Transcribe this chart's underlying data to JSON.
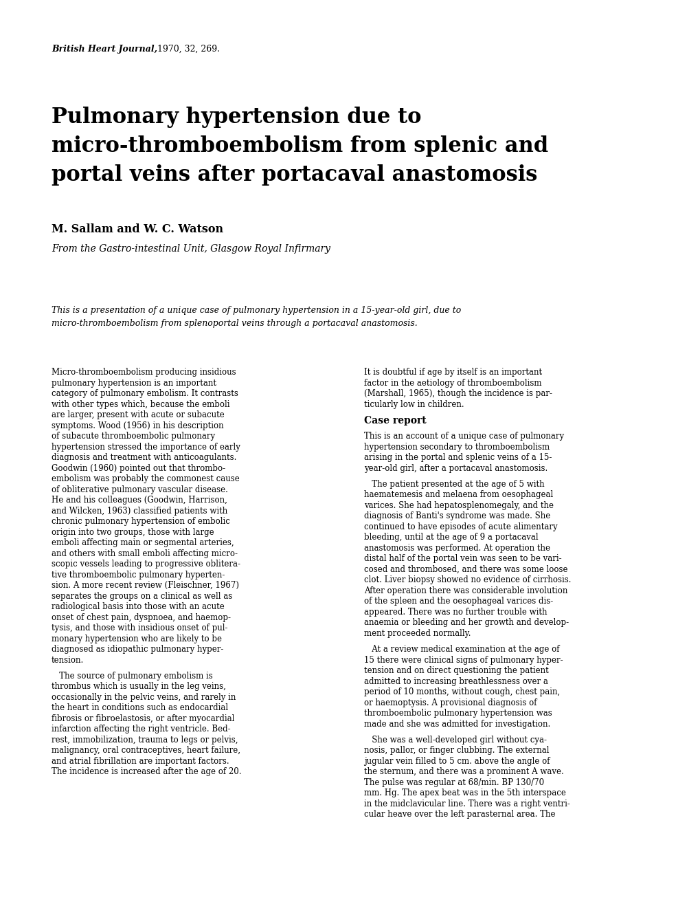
{
  "background_color": "#ffffff",
  "page_width": 10.2,
  "page_height": 13.31,
  "journal_ref_italic": "British Heart Journal,",
  "journal_ref_normal": " 1970, 32, 269.",
  "title_line1": "Pulmonary hypertension due to",
  "title_line2": "micro-thromboembolism from splenic and",
  "title_line3": "portal veins after portacaval anastomosis",
  "authors": "M. Sallam and W. C. Watson",
  "affiliation": "From the Gastro-intestinal Unit, Glasgow Royal Infirmary",
  "abstract_line1": "This is a presentation of a unique case of pulmonary hypertension in a 15-year-old girl, due to",
  "abstract_line2": "micro-thromboembolism from splenoportal veins through a portacaval anastomosis.",
  "col1_lines": [
    "Micro-thromboembolism producing insidious",
    "pulmonary hypertension is an important",
    "category of pulmonary embolism. It contrasts",
    "with other types which, because the emboli",
    "are larger, present with acute or subacute",
    "symptoms. Wood (1956) in his description",
    "of subacute thromboembolic pulmonary",
    "hypertension stressed the importance of early",
    "diagnosis and treatment with anticoagulants.",
    "Goodwin (1960) pointed out that thrombo-",
    "embolism was probably the commonest cause",
    "of obliterative pulmonary vascular disease.",
    "He and his colleagues (Goodwin, Harrison,",
    "and Wilcken, 1963) classified patients with",
    "chronic pulmonary hypertension of embolic",
    "origin into two groups, those with large",
    "emboli affecting main or segmental arteries,",
    "and others with small emboli affecting micro-",
    "scopic vessels leading to progressive oblitera-",
    "tive thromboembolic pulmonary hyperten-",
    "sion. A more recent review (Fleischner, 1967)",
    "separates the groups on a clinical as well as",
    "radiological basis into those with an acute",
    "onset of chest pain, dyspnoea, and haemop-",
    "tysis, and those with insidious onset of pul-",
    "monary hypertension who are likely to be",
    "diagnosed as idiopathic pulmonary hyper-",
    "tension.",
    "",
    "   The source of pulmonary embolism is",
    "thrombus which is usually in the leg veins,",
    "occasionally in the pelvic veins, and rarely in",
    "the heart in conditions such as endocardial",
    "fibrosis or fibroelastosis, or after myocardial",
    "infarction affecting the right ventricle. Bed-",
    "rest, immobilization, trauma to legs or pelvis,",
    "malignancy, oral contraceptives, heart failure,",
    "and atrial fibrillation are important factors.",
    "The incidence is increased after the age of 20."
  ],
  "col2_lines": [
    "It is doubtful if age by itself is an important",
    "factor in the aetiology of thromboembolism",
    "(Marshall, 1965), though the incidence is par-",
    "ticularly low in children.",
    "",
    "HEADER:Case report",
    "",
    "This is an account of a unique case of pulmonary",
    "hypertension secondary to thromboembolism",
    "arising in the portal and splenic veins of a 15-",
    "year-old girl, after a portacaval anastomosis.",
    "",
    "   The patient presented at the age of 5 with",
    "haematemesis and melaena from oesophageal",
    "varices. She had hepatosplenomegaly, and the",
    "diagnosis of Banti's syndrome was made. She",
    "continued to have episodes of acute alimentary",
    "bleeding, until at the age of 9 a portacaval",
    "anastomosis was performed. At operation the",
    "distal half of the portal vein was seen to be vari-",
    "cosed and thrombosed, and there was some loose",
    "clot. Liver biopsy showed no evidence of cirrhosis.",
    "After operation there was considerable involution",
    "of the spleen and the oesophageal varices dis-",
    "appeared. There was no further trouble with",
    "anaemia or bleeding and her growth and develop-",
    "ment proceeded normally.",
    "",
    "   At a review medical examination at the age of",
    "15 there were clinical signs of pulmonary hyper-",
    "tension and on direct questioning the patient",
    "admitted to increasing breathlessness over a",
    "period of 10 months, without cough, chest pain,",
    "or haemoptysis. A provisional diagnosis of",
    "thromboembolic pulmonary hypertension was",
    "made and she was admitted for investigation.",
    "",
    "   She was a well-developed girl without cya-",
    "nosis, pallor, or finger clubbing. The external",
    "jugular vein filled to 5 cm. above the angle of",
    "the sternum, and there was a prominent A wave.",
    "The pulse was regular at 68/min. BP 130/70",
    "mm. Hg. The apex beat was in the 5th interspace",
    "in the midclavicular line. There was a right ventri-",
    "cular heave over the left parasternal area. The"
  ]
}
